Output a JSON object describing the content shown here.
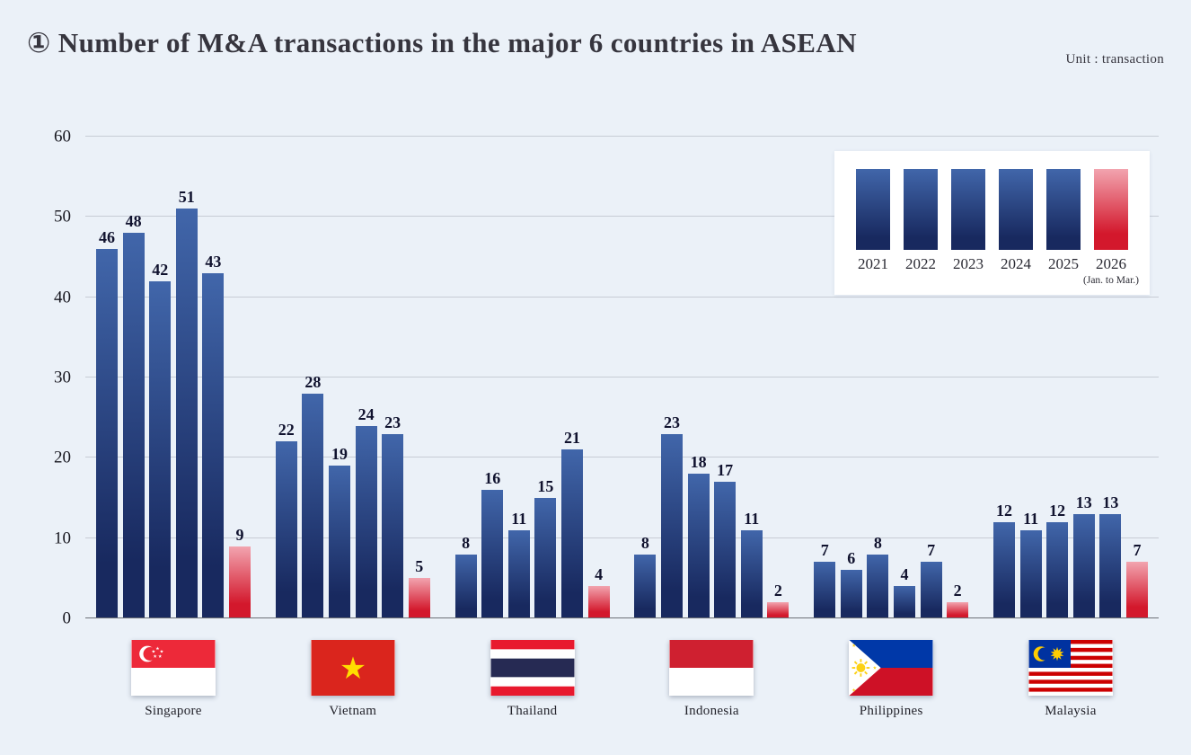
{
  "header": {
    "title": "① Number of M&A transactions in the major 6 countries in ASEAN",
    "unit_label": "Unit : transaction"
  },
  "legend": {
    "items": [
      {
        "year": "2021",
        "style": "regular"
      },
      {
        "year": "2022",
        "style": "regular"
      },
      {
        "year": "2023",
        "style": "regular"
      },
      {
        "year": "2024",
        "style": "regular"
      },
      {
        "year": "2025",
        "style": "regular"
      },
      {
        "year": "2026",
        "style": "highlight",
        "note": "(Jan. to Mar.)"
      }
    ]
  },
  "chart_data": {
    "type": "bar",
    "title": "Number of M&A transactions in the major 6 countries in ASEAN",
    "unit": "transaction",
    "categories": [
      "Singapore",
      "Vietnam",
      "Thailand",
      "Indonesia",
      "Philippines",
      "Malaysia"
    ],
    "series": [
      {
        "name": "2021",
        "highlight": false,
        "values": [
          46,
          22,
          8,
          8,
          7,
          12
        ]
      },
      {
        "name": "2022",
        "highlight": false,
        "values": [
          48,
          28,
          16,
          23,
          6,
          11
        ]
      },
      {
        "name": "2023",
        "highlight": false,
        "values": [
          42,
          19,
          11,
          18,
          8,
          12
        ]
      },
      {
        "name": "2024",
        "highlight": false,
        "values": [
          51,
          24,
          15,
          17,
          4,
          13
        ]
      },
      {
        "name": "2025",
        "highlight": false,
        "values": [
          43,
          23,
          21,
          11,
          7,
          13
        ]
      },
      {
        "name": "2026",
        "highlight": true,
        "values": [
          9,
          5,
          4,
          2,
          2,
          7
        ]
      }
    ],
    "ylim": [
      0,
      60
    ],
    "yticks": [
      0,
      10,
      20,
      30,
      40,
      50,
      60
    ],
    "grid": true,
    "legend_position": "top-right",
    "colors": {
      "background": "#ebf1f8",
      "bar_regular_top": "#4166aa",
      "bar_regular_bottom": "#18295f",
      "bar_highlight_top": "#f2a4af",
      "bar_highlight_bottom": "#d3182c"
    },
    "flag_icons": [
      "singapore-flag-icon",
      "vietnam-flag-icon",
      "thailand-flag-icon",
      "indonesia-flag-icon",
      "philippines-flag-icon",
      "malaysia-flag-icon"
    ]
  }
}
